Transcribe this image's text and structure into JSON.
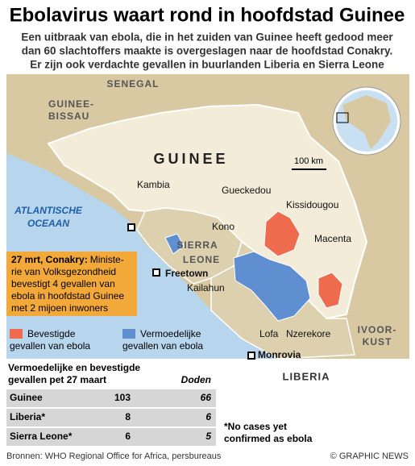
{
  "header": {
    "title": "Ebolavirus waart rond in hoofdstad Guinee",
    "subtitle": [
      "Een uitbraak van ebola, die in het zuiden van Guinee heeft gedood meer",
      "dan 60 slachtoffers maakte is overgeslagen naar de hoofdstad Conakry.",
      "Er zijn ook verdachte gevallen in buurlanden Liberia en Sierra Leone"
    ]
  },
  "map": {
    "countries": {
      "senegal": "SENEGAL",
      "guinea_bissau": [
        "GUINEE-",
        "BISSAU"
      ],
      "guinee": "GUINEE",
      "sierra_leone": [
        "SIERRA",
        "LEONE"
      ],
      "liberia": "LIBERIA",
      "ivory_coast": [
        "IVOOR-",
        "KUST"
      ],
      "ocean": [
        "ATLANTISCHE",
        "OCEAAN"
      ]
    },
    "places": {
      "kambia": "Kambia",
      "gueckedou": "Gueckedou",
      "kissidougou": "Kissidougou",
      "kono": "Kono",
      "macenta": "Macenta",
      "freetown": "Freetown",
      "kailahun": "Kailahun",
      "lofa": "Lofa",
      "nzerekore": "Nzerekore",
      "monrovia": "Monrovia"
    },
    "scale": "100 km"
  },
  "callout": {
    "title": "27 mrt, Conakry:",
    "lines": [
      "Ministe-",
      "rie van Volksgezondheid",
      "bevestigt 4 gevallen van",
      "ebola in hoofdstad Guinee",
      "met 2 mijoen inwoners"
    ]
  },
  "legend": [
    {
      "label": [
        "Bevestigde",
        "gevallen van ebola"
      ],
      "color": "#ee6b4d"
    },
    {
      "label": [
        "Vermoedelijke",
        "gevallen van ebola"
      ],
      "color": "#5f8fd0"
    }
  ],
  "table": {
    "caption": [
      "Vermoedelijke en bevestigde",
      "gevallen pet 27 maart"
    ],
    "column": "Doden",
    "rows": [
      [
        "Guinee",
        103,
        66
      ],
      [
        "Liberia*",
        8,
        6
      ],
      [
        "Sierra Leone*",
        6,
        5
      ]
    ],
    "note": [
      "*No cases yet",
      "confirmed as ebola"
    ]
  },
  "footer": {
    "source": "Bronnen: WHO Regional Office for Africa, persbureaus",
    "credit": "© GRAPHIC NEWS"
  }
}
